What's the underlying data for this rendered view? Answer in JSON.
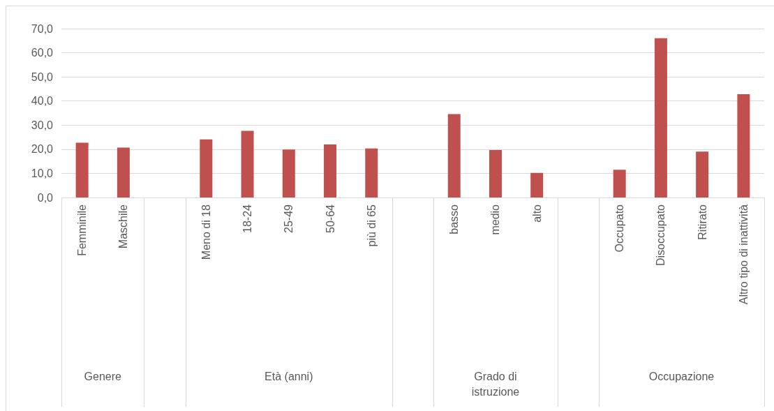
{
  "chart_data": {
    "type": "bar",
    "categories": [
      "Femminile",
      "Maschile",
      null,
      "Meno di 18",
      "18-24",
      "25-49",
      "50-64",
      "più di 65",
      null,
      "basso",
      "medio",
      "alto",
      null,
      "Occupato",
      "Disoccupato",
      "Ritirato",
      "Altro tipo di inattività"
    ],
    "values": [
      22.7,
      20.7,
      null,
      24.1,
      27.6,
      19.9,
      22.0,
      20.3,
      null,
      34.6,
      19.7,
      10.2,
      null,
      11.5,
      66.0,
      19.0,
      42.8
    ],
    "color": "#c0504d",
    "ylim": [
      0,
      70
    ],
    "yticks": [
      {
        "value": 0,
        "label": "0,0"
      },
      {
        "value": 10,
        "label": "10,0"
      },
      {
        "value": 20,
        "label": "20,0"
      },
      {
        "value": 30,
        "label": "30,0"
      },
      {
        "value": 40,
        "label": "40,0"
      },
      {
        "value": 50,
        "label": "50,0"
      },
      {
        "value": 60,
        "label": "60,0"
      },
      {
        "value": 70,
        "label": "70,0"
      }
    ],
    "grid": "y",
    "annotations": [
      "Genere",
      "Età (anni)",
      "Grado di istruzione",
      "Occupazione"
    ]
  }
}
